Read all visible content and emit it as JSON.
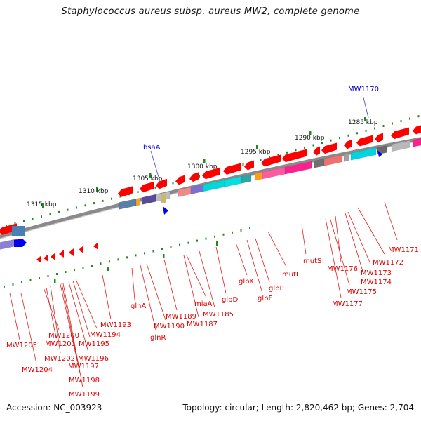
{
  "title": "Staphylococcus aureus subsp. aureus MW2, complete genome",
  "footer": {
    "accession": "Accession: NC_003923",
    "summary": "Topology: circular; Length: 2,820,462 bp; Genes: 2,704"
  },
  "colors": {
    "backbone": "#8a8a8a",
    "tick": "#1f8a1f",
    "forward_feature": "#ff0000",
    "callout_red": "#e00000",
    "callout_blue": "#0000cc"
  },
  "ruler": {
    "ticks": [
      {
        "label": "1315 kbp",
        "kbp": 1315
      },
      {
        "label": "1310 kbp",
        "kbp": 1310
      },
      {
        "label": "1305 kbp",
        "kbp": 1305
      },
      {
        "label": "1300 kbp",
        "kbp": 1300
      },
      {
        "label": "1295 kbp",
        "kbp": 1295
      },
      {
        "label": "1290 kbp",
        "kbp": 1290
      },
      {
        "label": "1285 kbp",
        "kbp": 1285
      }
    ]
  },
  "callouts_top": [
    {
      "label": "bsaA",
      "color": "blue"
    },
    {
      "label": "MW1170",
      "color": "blue"
    }
  ],
  "callouts": [
    {
      "label": "MW1205"
    },
    {
      "label": "MW1204"
    },
    {
      "label": "MW1200"
    },
    {
      "label": "MW1201"
    },
    {
      "label": "MW1202"
    },
    {
      "label": "MW1197"
    },
    {
      "label": "MW1198"
    },
    {
      "label": "MW1199"
    },
    {
      "label": "MW1196"
    },
    {
      "label": "MW1195"
    },
    {
      "label": "MW1194"
    },
    {
      "label": "MW1193"
    },
    {
      "label": "glnA"
    },
    {
      "label": "glnR"
    },
    {
      "label": "MW1190"
    },
    {
      "label": "MW1189"
    },
    {
      "label": "MW1187"
    },
    {
      "label": "miaA"
    },
    {
      "label": "MW1185"
    },
    {
      "label": "glpD"
    },
    {
      "label": "glpK"
    },
    {
      "label": "glpF"
    },
    {
      "label": "glpP"
    },
    {
      "label": "mutL"
    },
    {
      "label": "mutS"
    },
    {
      "label": "MW1177"
    },
    {
      "label": "MW1175"
    },
    {
      "label": "MW1176"
    },
    {
      "label": "MW1174"
    },
    {
      "label": "MW1173"
    },
    {
      "label": "MW1172"
    },
    {
      "label": "MW1171"
    }
  ]
}
